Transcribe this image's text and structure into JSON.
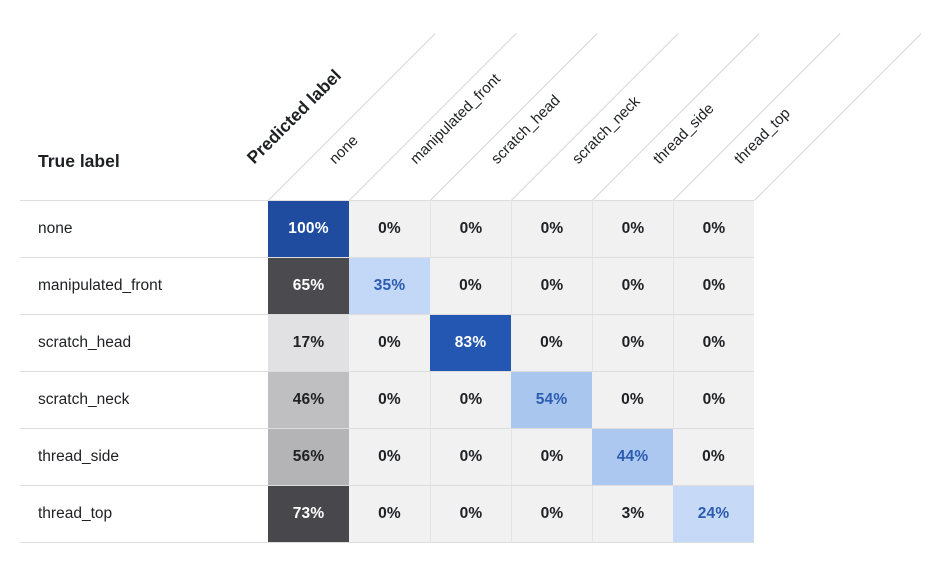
{
  "chart_data": {
    "type": "heatmap",
    "x_axis": {
      "label": "Predicted label",
      "categories": [
        "none",
        "manipulated_front",
        "scratch_head",
        "scratch_neck",
        "thread_side",
        "thread_top"
      ]
    },
    "y_axis": {
      "label": "True label",
      "categories": [
        "none",
        "manipulated_front",
        "scratch_head",
        "scratch_neck",
        "thread_side",
        "thread_top"
      ]
    },
    "values_percent": [
      [
        100,
        0,
        0,
        0,
        0,
        0
      ],
      [
        65,
        35,
        0,
        0,
        0,
        0
      ],
      [
        17,
        0,
        83,
        0,
        0,
        0
      ],
      [
        46,
        0,
        0,
        54,
        0,
        0
      ],
      [
        56,
        0,
        0,
        0,
        44,
        0
      ],
      [
        73,
        0,
        0,
        0,
        3,
        24
      ]
    ],
    "cell_labels": [
      [
        "100%",
        "0%",
        "0%",
        "0%",
        "0%",
        "0%"
      ],
      [
        "65%",
        "35%",
        "0%",
        "0%",
        "0%",
        "0%"
      ],
      [
        "17%",
        "0%",
        "83%",
        "0%",
        "0%",
        "0%"
      ],
      [
        "46%",
        "0%",
        "0%",
        "54%",
        "0%",
        "0%"
      ],
      [
        "56%",
        "0%",
        "0%",
        "0%",
        "44%",
        "0%"
      ],
      [
        "73%",
        "0%",
        "0%",
        "0%",
        "3%",
        "24%"
      ]
    ],
    "legend": "none",
    "grid": "row dividers and faint column separators"
  },
  "styles": {
    "cell_bg": [
      [
        "#1F4C9E",
        "#F1F1F2",
        "#F1F1F2",
        "#F1F1F2",
        "#F1F1F2",
        "#F1F1F2"
      ],
      [
        "#4B4B4F",
        "#C3D7F6",
        "#F1F1F2",
        "#F1F1F2",
        "#F1F1F2",
        "#F1F1F2"
      ],
      [
        "#E1E1E3",
        "#F1F1F2",
        "#2357B2",
        "#F1F1F2",
        "#F1F1F2",
        "#F1F1F2"
      ],
      [
        "#BFBFC1",
        "#F1F1F2",
        "#F1F1F2",
        "#A9C6EF",
        "#F1F1F2",
        "#F1F1F2"
      ],
      [
        "#B4B4B6",
        "#F1F1F2",
        "#F1F1F2",
        "#F1F1F2",
        "#ADC8F0",
        "#F1F1F2"
      ],
      [
        "#48484C",
        "#F1F1F2",
        "#F1F1F2",
        "#F1F1F2",
        "#F1F1F2",
        "#C6D9F7"
      ]
    ],
    "cell_fg": [
      [
        "#FFFFFF",
        "#202124",
        "#202124",
        "#202124",
        "#202124",
        "#202124"
      ],
      [
        "#FFFFFF",
        "#2B5CB0",
        "#202124",
        "#202124",
        "#202124",
        "#202124"
      ],
      [
        "#202124",
        "#202124",
        "#FFFFFF",
        "#202124",
        "#202124",
        "#202124"
      ],
      [
        "#202124",
        "#202124",
        "#202124",
        "#2B5CB0",
        "#202124",
        "#202124"
      ],
      [
        "#202124",
        "#202124",
        "#202124",
        "#202124",
        "#2B5CB0",
        "#202124"
      ],
      [
        "#FFFFFF",
        "#202124",
        "#202124",
        "#202124",
        "#202124",
        "#2B5CB0"
      ]
    ],
    "colors": {
      "zero_cell_bg": "#F1F1F2",
      "row_divider": "#DDDDDF",
      "diagonal_line": "#D6D6D6",
      "column_separator": "#E4E4E6",
      "text_dark": "#202124",
      "text_blue": "#2B5CB0",
      "text_white": "#FFFFFF",
      "diagonal_strong_blue": "#1F4C9E",
      "off_diagonal_gray": "#4B4B4F"
    }
  }
}
